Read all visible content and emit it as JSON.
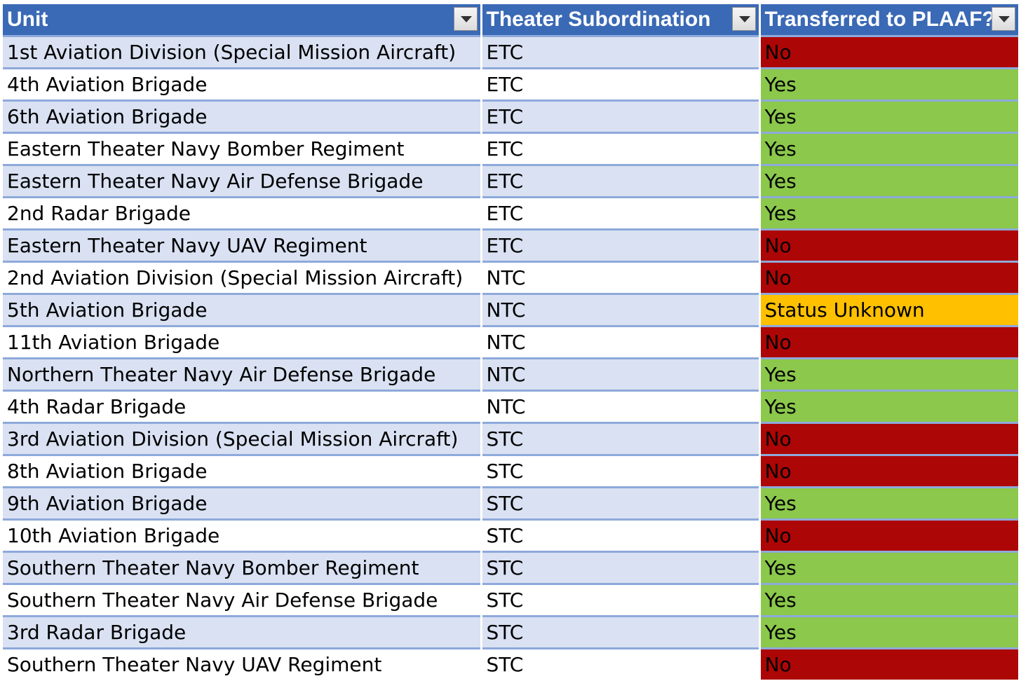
{
  "table": {
    "headers": [
      {
        "label": "Unit",
        "name": "header-unit"
      },
      {
        "label": "Theater Subordination",
        "name": "header-theater-subordination"
      },
      {
        "label": "Transferred to PLAAF?",
        "name": "header-transferred-to-plaaf"
      }
    ],
    "status_colors": {
      "Yes": "#8bc84b",
      "No": "#ad0606",
      "Status Unknown": "#ffc000"
    },
    "rows": [
      {
        "unit": "1st Aviation Division (Special Mission Aircraft)",
        "theater": "ETC",
        "transferred": "No"
      },
      {
        "unit": "4th Aviation Brigade",
        "theater": "ETC",
        "transferred": "Yes"
      },
      {
        "unit": "6th Aviation Brigade",
        "theater": "ETC",
        "transferred": "Yes"
      },
      {
        "unit": "Eastern Theater Navy Bomber Regiment",
        "theater": "ETC",
        "transferred": "Yes"
      },
      {
        "unit": "Eastern Theater Navy Air Defense Brigade",
        "theater": "ETC",
        "transferred": "Yes"
      },
      {
        "unit": "2nd Radar Brigade",
        "theater": "ETC",
        "transferred": "Yes"
      },
      {
        "unit": "Eastern Theater Navy UAV Regiment",
        "theater": "ETC",
        "transferred": "No"
      },
      {
        "unit": "2nd Aviation Division (Special Mission Aircraft)",
        "theater": "NTC",
        "transferred": "No"
      },
      {
        "unit": "5th Aviation Brigade",
        "theater": "NTC",
        "transferred": "Status Unknown"
      },
      {
        "unit": "11th Aviation Brigade",
        "theater": "NTC",
        "transferred": "No"
      },
      {
        "unit": "Northern Theater Navy Air Defense Brigade",
        "theater": "NTC",
        "transferred": "Yes"
      },
      {
        "unit": "4th Radar Brigade",
        "theater": "NTC",
        "transferred": "Yes"
      },
      {
        "unit": "3rd Aviation Division (Special Mission Aircraft)",
        "theater": "STC",
        "transferred": "No"
      },
      {
        "unit": "8th Aviation Brigade",
        "theater": "STC",
        "transferred": "No"
      },
      {
        "unit": "9th Aviation Brigade",
        "theater": "STC",
        "transferred": "Yes"
      },
      {
        "unit": "10th Aviation Brigade",
        "theater": "STC",
        "transferred": "No"
      },
      {
        "unit": "Southern Theater Navy Bomber Regiment",
        "theater": "STC",
        "transferred": "Yes"
      },
      {
        "unit": "Southern Theater Navy Air Defense Brigade",
        "theater": "STC",
        "transferred": "Yes"
      },
      {
        "unit": "3rd Radar Brigade",
        "theater": "STC",
        "transferred": "Yes"
      },
      {
        "unit": "Southern Theater Navy UAV Regiment",
        "theater": "STC",
        "transferred": "No"
      }
    ]
  }
}
